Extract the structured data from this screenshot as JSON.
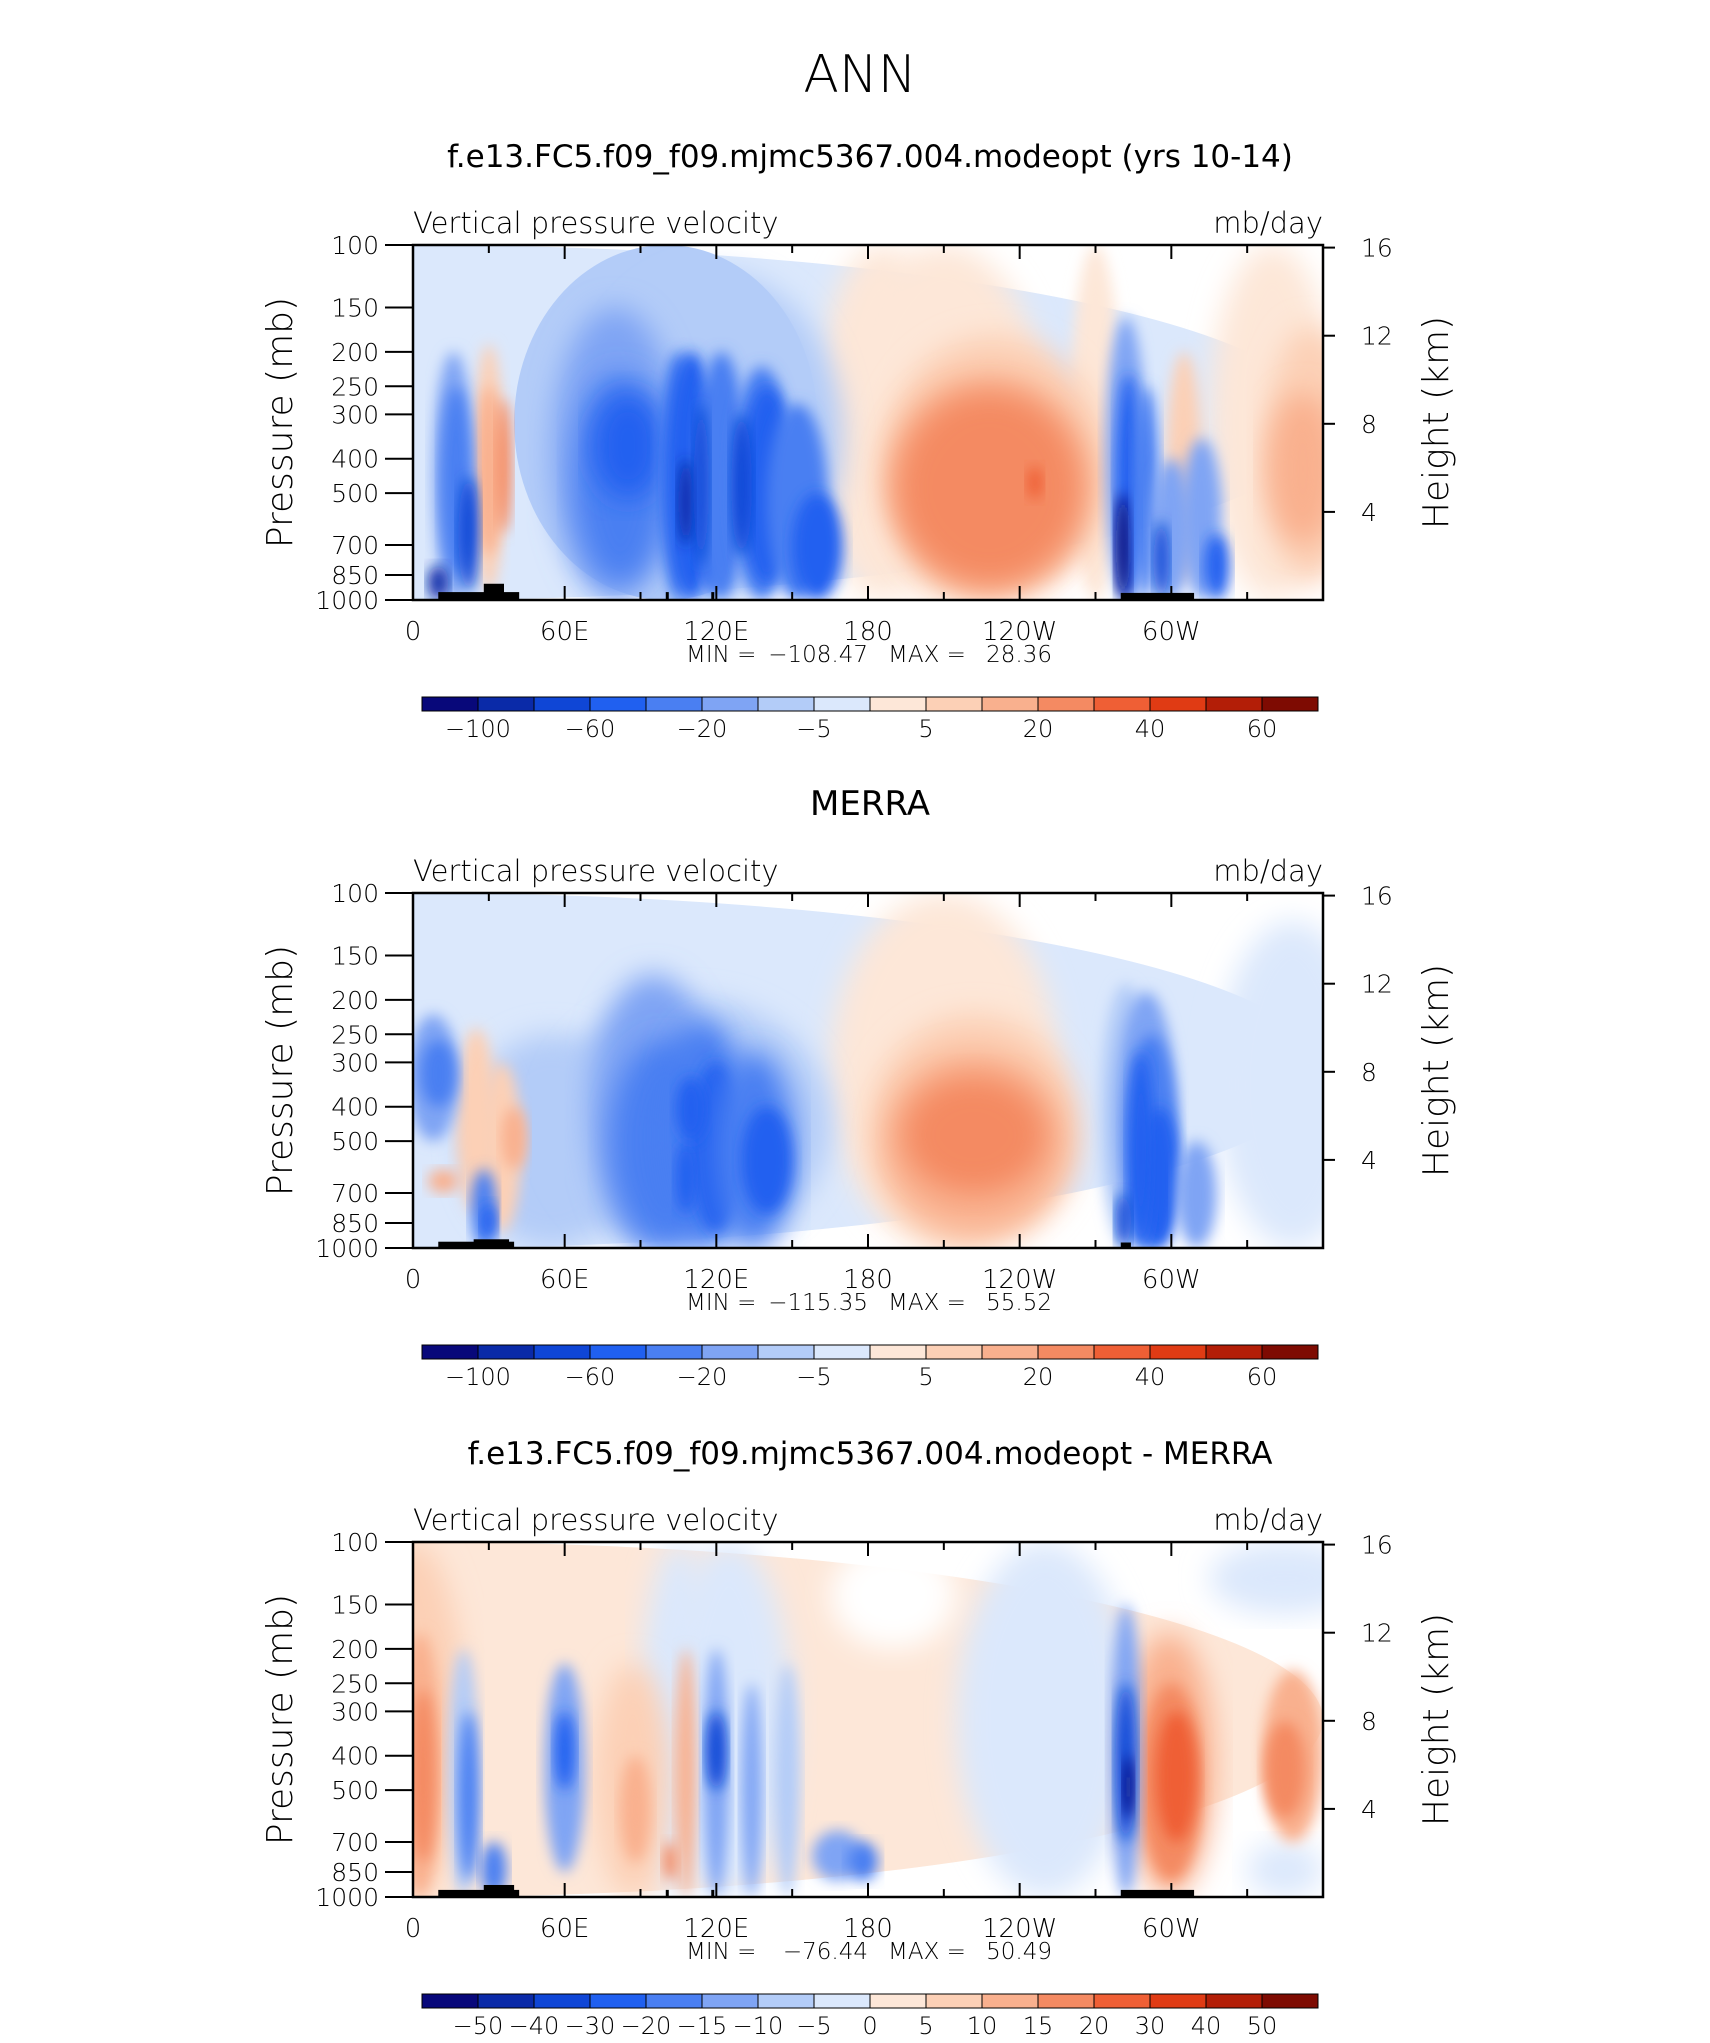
{
  "page_title": "ANN",
  "labels": {
    "variable": "Vertical pressure velocity",
    "units": "mb/day",
    "left_axis": "Pressure (mb)",
    "right_axis": "Height (km)",
    "min_label": "MIN =",
    "max_label": "MAX ="
  },
  "colors": {
    "negative": [
      "#08087a",
      "#0a2aa8",
      "#0f46d6",
      "#2060f0",
      "#4a7ff2",
      "#7fa4f4",
      "#b3ccf8",
      "#dbe8fc"
    ],
    "positive": [
      "#fde7d8",
      "#fcd0b6",
      "#f9b08e",
      "#f48a62",
      "#ef5f35",
      "#e03b14",
      "#b31e07",
      "#7e0b02"
    ],
    "topography": "#000000"
  },
  "chart_data": [
    {
      "type": "heatmap",
      "title": "f.e13.FC5.f09_f09.mjmc5367.004.modeopt (yrs 10-14)",
      "variable": "Vertical pressure velocity",
      "units": "mb/day",
      "x_ticks": [
        "0",
        "60E",
        "120E",
        "180",
        "120W",
        "60W"
      ],
      "y_ticks_left": [
        "100",
        "150",
        "200",
        "250",
        "300",
        "400",
        "500",
        "700",
        "850",
        "1000"
      ],
      "y_ticks_right": [
        "16",
        "12",
        "8",
        "4"
      ],
      "ylabel_left": "Pressure (mb)",
      "ylabel_right": "Height (km)",
      "min": "−108.47",
      "max": "28.36",
      "colorbar_ticks": [
        "−100",
        "−60",
        "−20",
        "−5",
        "5",
        "20",
        "40",
        "60"
      ]
    },
    {
      "type": "heatmap",
      "title": "MERRA",
      "variable": "Vertical pressure velocity",
      "units": "mb/day",
      "x_ticks": [
        "0",
        "60E",
        "120E",
        "180",
        "120W",
        "60W"
      ],
      "y_ticks_left": [
        "100",
        "150",
        "200",
        "250",
        "300",
        "400",
        "500",
        "700",
        "850",
        "1000"
      ],
      "y_ticks_right": [
        "16",
        "12",
        "8",
        "4"
      ],
      "ylabel_left": "Pressure (mb)",
      "ylabel_right": "Height (km)",
      "min": "−115.35",
      "max": "55.52",
      "colorbar_ticks": [
        "−100",
        "−60",
        "−20",
        "−5",
        "5",
        "20",
        "40",
        "60"
      ]
    },
    {
      "type": "heatmap",
      "title": "f.e13.FC5.f09_f09.mjmc5367.004.modeopt - MERRA",
      "variable": "Vertical pressure velocity",
      "units": "mb/day",
      "x_ticks": [
        "0",
        "60E",
        "120E",
        "180",
        "120W",
        "60W"
      ],
      "y_ticks_left": [
        "100",
        "150",
        "200",
        "250",
        "300",
        "400",
        "500",
        "700",
        "850",
        "1000"
      ],
      "y_ticks_right": [
        "16",
        "12",
        "8",
        "4"
      ],
      "ylabel_left": "Pressure (mb)",
      "ylabel_right": "Height (km)",
      "min": "−76.44",
      "max": "50.49",
      "colorbar_ticks": [
        "−50",
        "−40",
        "−30",
        "−20",
        "−15",
        "−10",
        "−5",
        "0",
        "5",
        "10",
        "15",
        "20",
        "30",
        "40",
        "50"
      ]
    }
  ]
}
